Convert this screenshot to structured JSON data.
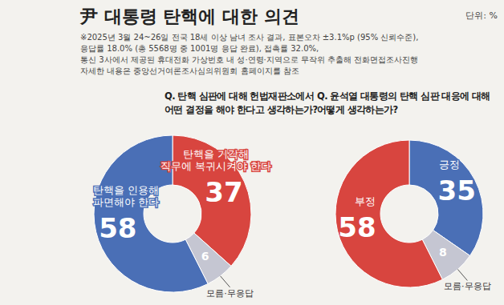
{
  "title": "尹 대통령 탄핵에 대한 의견",
  "unit": "단위: %",
  "note": [
    "※2025년 3월 24~26일 전국 18세 이상 남녀 조사 결과, 표본오차 ±3.1%p (95% 신뢰수준),",
    "응답률 18.0% (총 5568명 중 1001명 응답 완료), 접촉률 32.0%,",
    "통신 3사에서 제공된 휴대전화 가상번호 내 성·연령·지역으로 무작위 추출해 전화면접조사진행",
    "자세한 내용은 중앙선거여론조사심의위원회 홈페이지를 참조"
  ],
  "chart_data": [
    {
      "type": "pie",
      "title": "Q. 탄핵 심판에 대해 헌법재판소에서\n어떤 결정을 해야 한다고 생각하는가?",
      "categories": [
        "탄핵을 기각해\n직무에 복귀시켜야 한다",
        "모름·무응답",
        "탄핵을 인용해\n파면해야 한다"
      ],
      "values": [
        37,
        6,
        58
      ],
      "colors": [
        "#d8453f",
        "#c5c6d2",
        "#4a6fb6"
      ],
      "data_labels": true
    },
    {
      "type": "pie",
      "title": "Q. 윤석열 대통령의 탄핵 심판 대응에 대해\n어떻게 생각하는가?",
      "categories": [
        "긍정",
        "모름·무응답",
        "부정"
      ],
      "values": [
        35,
        8,
        58
      ],
      "colors": [
        "#4a6fb6",
        "#c5c6d2",
        "#d8453f"
      ],
      "data_labels": true
    }
  ]
}
